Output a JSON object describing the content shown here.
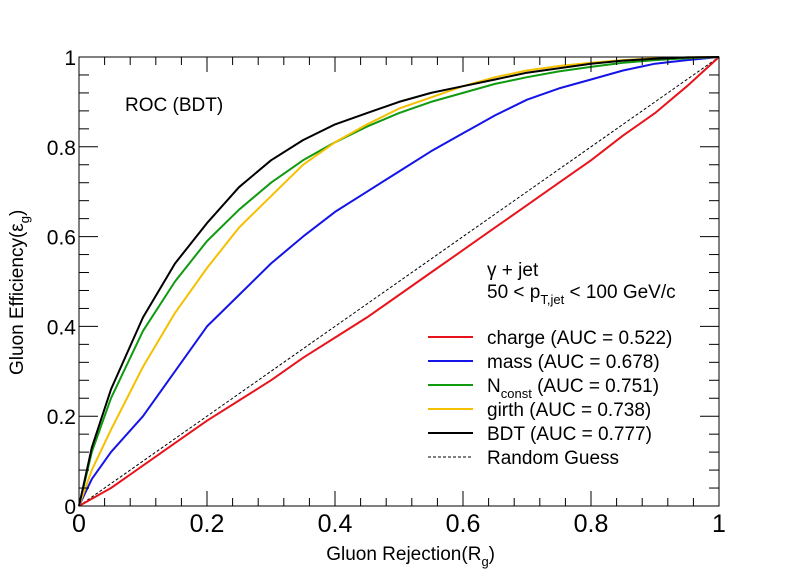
{
  "chart_data": {
    "type": "line",
    "title": "ROC (BDT)",
    "xlabel": "Gluon Rejection(R",
    "xlabel_sub": "g",
    "xlabel_close": ")",
    "ylabel": "Gluon Efficiency(ε",
    "ylabel_sub": "g",
    "ylabel_close": ")",
    "xlim": [
      0,
      1
    ],
    "ylim": [
      0,
      1
    ],
    "xticks": [
      "0",
      "0.2",
      "0.4",
      "0.6",
      "0.8",
      "1"
    ],
    "yticks": [
      "0",
      "0.2",
      "0.4",
      "0.6",
      "0.8",
      "1"
    ],
    "grid": false,
    "legend_position": "bottom-right",
    "annotation": {
      "line1": "γ + jet",
      "line2_prefix": "50 < p",
      "line2_sub": "T,jet",
      "line2_suffix": " < 100 GeV/c"
    },
    "series": [
      {
        "name": "charge (AUC = 0.522)",
        "legend_prefix": "charge",
        "legend_sub": "",
        "legend_suffix": " (AUC = 0.522)",
        "color": "#e8141c",
        "dashed": false,
        "x": [
          0,
          0.05,
          0.1,
          0.15,
          0.2,
          0.25,
          0.3,
          0.35,
          0.4,
          0.45,
          0.5,
          0.55,
          0.6,
          0.65,
          0.7,
          0.75,
          0.8,
          0.85,
          0.9,
          0.95,
          1
        ],
        "y": [
          0,
          0.04,
          0.09,
          0.14,
          0.19,
          0.235,
          0.28,
          0.33,
          0.375,
          0.42,
          0.47,
          0.52,
          0.57,
          0.62,
          0.67,
          0.72,
          0.77,
          0.825,
          0.875,
          0.935,
          1
        ]
      },
      {
        "name": "mass (AUC = 0.678)",
        "legend_prefix": "mass",
        "legend_sub": "",
        "legend_suffix": " (AUC = 0.678)",
        "color": "#1414e8",
        "dashed": false,
        "x": [
          0,
          0.02,
          0.05,
          0.1,
          0.15,
          0.2,
          0.25,
          0.3,
          0.35,
          0.4,
          0.45,
          0.5,
          0.55,
          0.6,
          0.65,
          0.7,
          0.75,
          0.8,
          0.85,
          0.9,
          0.95,
          1
        ],
        "y": [
          0,
          0.06,
          0.12,
          0.2,
          0.3,
          0.4,
          0.47,
          0.54,
          0.6,
          0.655,
          0.7,
          0.745,
          0.79,
          0.83,
          0.87,
          0.905,
          0.93,
          0.95,
          0.97,
          0.985,
          0.993,
          1
        ]
      },
      {
        "name": "Nconst (AUC = 0.751)",
        "legend_prefix": "N",
        "legend_sub": "const",
        "legend_suffix": " (AUC = 0.751)",
        "color": "#109a10",
        "dashed": false,
        "x": [
          0,
          0.02,
          0.05,
          0.1,
          0.15,
          0.2,
          0.25,
          0.3,
          0.35,
          0.4,
          0.45,
          0.5,
          0.55,
          0.6,
          0.65,
          0.7,
          0.75,
          0.8,
          0.85,
          0.9,
          0.95,
          1
        ],
        "y": [
          0,
          0.12,
          0.24,
          0.39,
          0.5,
          0.59,
          0.66,
          0.72,
          0.77,
          0.81,
          0.845,
          0.875,
          0.9,
          0.92,
          0.94,
          0.955,
          0.968,
          0.978,
          0.987,
          0.993,
          0.997,
          1
        ]
      },
      {
        "name": "girth (AUC = 0.738)",
        "legend_prefix": "girth",
        "legend_sub": "",
        "legend_suffix": " (AUC = 0.738)",
        "color": "#f5c000",
        "dashed": false,
        "x": [
          0,
          0.02,
          0.05,
          0.1,
          0.15,
          0.2,
          0.25,
          0.3,
          0.35,
          0.4,
          0.45,
          0.5,
          0.55,
          0.6,
          0.65,
          0.7,
          0.75,
          0.8,
          0.85,
          0.9,
          0.95,
          1
        ],
        "y": [
          0,
          0.08,
          0.17,
          0.31,
          0.43,
          0.53,
          0.62,
          0.69,
          0.76,
          0.81,
          0.85,
          0.885,
          0.91,
          0.935,
          0.955,
          0.97,
          0.98,
          0.987,
          0.993,
          0.997,
          0.999,
          1
        ]
      },
      {
        "name": "BDT (AUC = 0.777)",
        "legend_prefix": "BDT",
        "legend_sub": "",
        "legend_suffix": " (AUC = 0.777)",
        "color": "#000000",
        "dashed": false,
        "x": [
          0,
          0.02,
          0.05,
          0.1,
          0.15,
          0.2,
          0.25,
          0.3,
          0.35,
          0.4,
          0.45,
          0.5,
          0.55,
          0.6,
          0.65,
          0.7,
          0.75,
          0.8,
          0.85,
          0.9,
          0.95,
          1
        ],
        "y": [
          0,
          0.13,
          0.26,
          0.42,
          0.54,
          0.63,
          0.71,
          0.77,
          0.815,
          0.85,
          0.875,
          0.9,
          0.92,
          0.935,
          0.95,
          0.965,
          0.975,
          0.985,
          0.992,
          0.996,
          0.999,
          1
        ]
      },
      {
        "name": "Random Guess",
        "legend_prefix": "Random Guess",
        "legend_sub": "",
        "legend_suffix": "",
        "color": "#000000",
        "dashed": true,
        "x": [
          0,
          1
        ],
        "y": [
          0,
          1
        ]
      }
    ]
  }
}
